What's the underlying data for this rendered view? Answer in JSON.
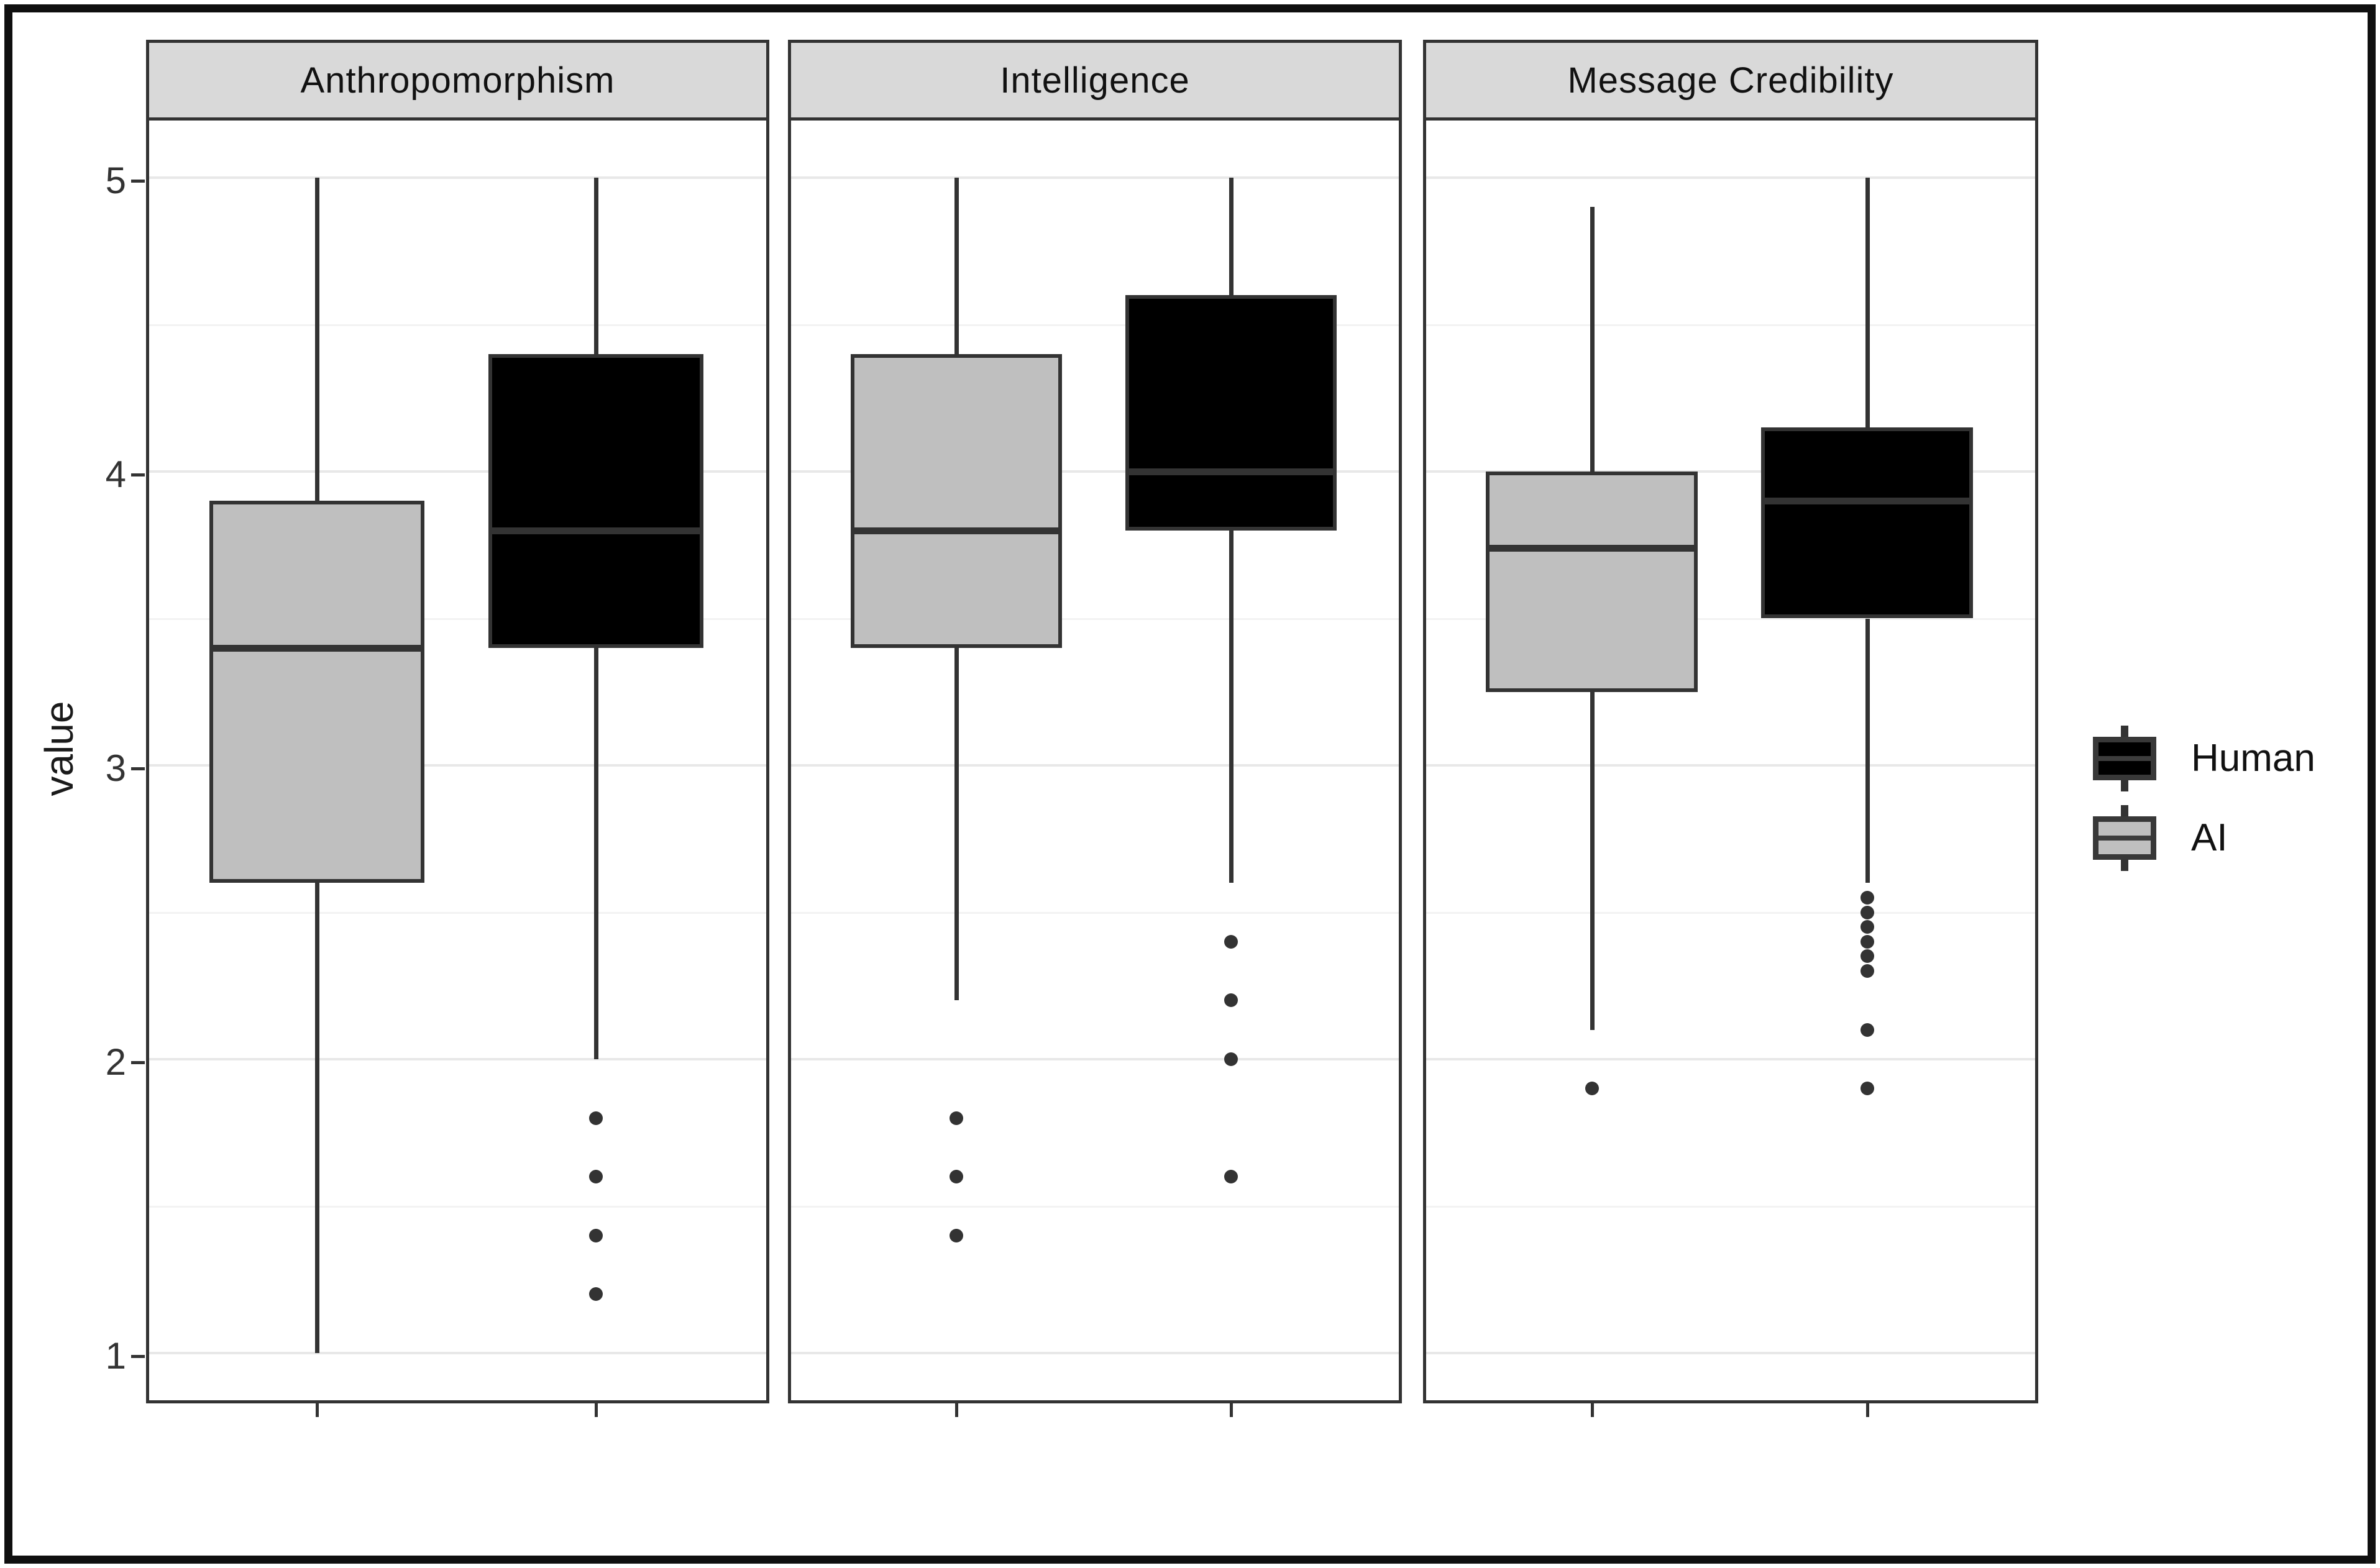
{
  "chart_data": {
    "type": "boxplot",
    "title": "",
    "xlabel": "",
    "ylabel": "value",
    "y_ticks": [
      "5",
      "4",
      "3",
      "2",
      "1"
    ],
    "y_tick_values": [
      5,
      4,
      3,
      2,
      1
    ],
    "ylim": [
      0.8,
      5.2
    ],
    "grid": {
      "major": [
        1,
        2,
        3,
        4,
        5
      ],
      "minor": [
        1.5,
        2.5,
        3.5,
        4.5
      ]
    },
    "legend_position": "right",
    "groups": [
      "AI",
      "Human"
    ],
    "colors": {
      "Human": "#000000",
      "AI": "#bfbfbf"
    },
    "stroke": "#333333",
    "facets": [
      {
        "label": "Anthropomorphism",
        "series": [
          {
            "group": "AI",
            "min": 1.0,
            "q1": 2.6,
            "median": 3.4,
            "q3": 3.9,
            "max": 5.0,
            "outliers": []
          },
          {
            "group": "Human",
            "min": 2.0,
            "q1": 3.4,
            "median": 3.8,
            "q3": 4.4,
            "max": 5.0,
            "outliers": [
              1.8,
              1.6,
              1.4,
              1.2
            ]
          }
        ]
      },
      {
        "label": "Intelligence",
        "series": [
          {
            "group": "AI",
            "min": 2.2,
            "q1": 3.4,
            "median": 3.8,
            "q3": 4.4,
            "max": 5.0,
            "outliers": [
              1.8,
              1.6,
              1.4
            ]
          },
          {
            "group": "Human",
            "min": 2.6,
            "q1": 3.8,
            "median": 4.0,
            "q3": 4.6,
            "max": 5.0,
            "outliers": [
              2.4,
              2.2,
              2.0,
              1.6
            ]
          }
        ]
      },
      {
        "label": "Message Credibility",
        "series": [
          {
            "group": "AI",
            "min": 2.1,
            "q1": 3.25,
            "median": 3.74,
            "q3": 4.0,
            "max": 4.9,
            "outliers": [
              1.9
            ]
          },
          {
            "group": "Human",
            "min": 2.6,
            "q1": 3.5,
            "median": 3.9,
            "q3": 4.15,
            "max": 5.0,
            "outliers": [
              2.55,
              2.5,
              2.45,
              2.4,
              2.35,
              2.3,
              2.1,
              1.9
            ]
          }
        ]
      }
    ],
    "legend": {
      "position": "right",
      "entries": [
        {
          "label": "Human",
          "fill": "#000000"
        },
        {
          "label": "AI",
          "fill": "#bfbfbf"
        }
      ]
    }
  }
}
